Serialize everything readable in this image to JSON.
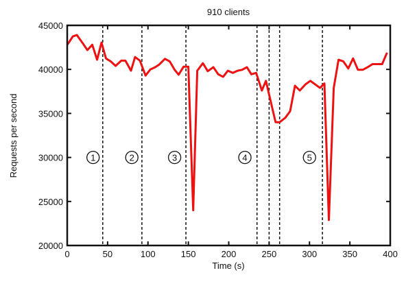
{
  "chart_data": {
    "type": "line",
    "title": "910 clients",
    "xlabel": "Time (s)",
    "ylabel": "Requests per second",
    "xlim": [
      0,
      400
    ],
    "ylim": [
      20000,
      45000
    ],
    "xticks": [
      0,
      50,
      100,
      150,
      200,
      250,
      300,
      350,
      400
    ],
    "yticks": [
      20000,
      25000,
      30000,
      35000,
      40000,
      45000
    ],
    "grid": false,
    "line_color": "#ee1111",
    "series": [
      {
        "x": [
          0,
          2,
          7,
          12,
          19,
          25,
          31,
          37,
          42.5,
          48,
          54,
          60,
          67,
          72,
          79,
          84,
          90,
          97,
          103,
          109,
          114,
          121,
          127,
          133,
          138,
          144,
          150,
          156,
          161,
          168,
          174,
          181,
          187,
          193,
          199,
          205,
          211,
          216.5,
          222.5,
          228,
          234,
          241,
          246,
          258,
          263,
          270,
          276,
          282,
          288,
          295,
          301,
          307,
          313,
          318.5,
          324,
          330,
          336,
          342,
          348,
          354,
          360,
          366,
          373,
          378,
          390,
          396
        ],
        "y": [
          42800,
          43050,
          43750,
          43900,
          43000,
          42200,
          42800,
          41100,
          43050,
          41250,
          40900,
          40400,
          41000,
          41000,
          39850,
          41400,
          41000,
          39300,
          40000,
          40250,
          40550,
          41200,
          40900,
          39950,
          39400,
          40300,
          40300,
          24000,
          39850,
          40700,
          39800,
          40250,
          39450,
          39150,
          39850,
          39600,
          39850,
          39950,
          40250,
          39450,
          39600,
          37600,
          38700,
          34000,
          34000,
          34500,
          35250,
          38150,
          37600,
          38300,
          38700,
          38300,
          37900,
          38400,
          22900,
          37900,
          41100,
          40900,
          40100,
          41250,
          39950,
          39950,
          40300,
          40600,
          40600,
          41900
        ]
      }
    ],
    "phase_boundaries": [
      44,
      92.5,
      147,
      235,
      250,
      263,
      316
    ],
    "annotations": [
      {
        "text": "1",
        "x": 32,
        "y": 30000
      },
      {
        "text": "2",
        "x": 80,
        "y": 30000
      },
      {
        "text": "3",
        "x": 133,
        "y": 30000
      },
      {
        "text": "4",
        "x": 220,
        "y": 30000
      },
      {
        "text": "5",
        "x": 300,
        "y": 30000
      }
    ]
  }
}
